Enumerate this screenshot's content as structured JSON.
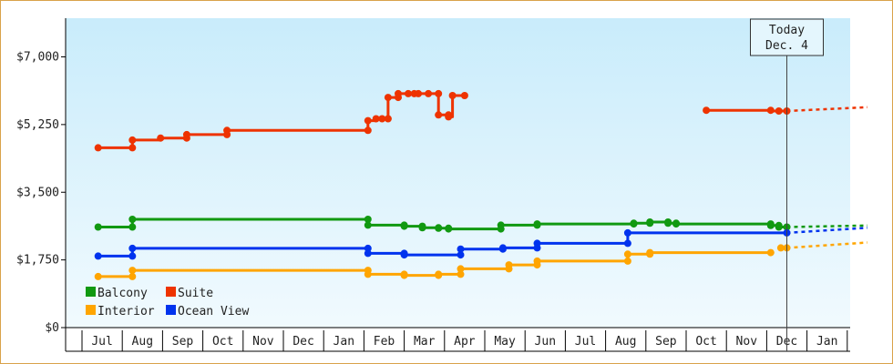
{
  "chart_data": {
    "type": "line",
    "title": "",
    "xlabel": "",
    "ylabel": "",
    "ylim": [
      0,
      8000
    ],
    "y_ticks": [
      {
        "value": 0,
        "label": "$0"
      },
      {
        "value": 1750,
        "label": "$1,750"
      },
      {
        "value": 3500,
        "label": "$3,500"
      },
      {
        "value": 5250,
        "label": "$5,250"
      },
      {
        "value": 7000,
        "label": "$7,000"
      }
    ],
    "x_months": [
      "Jul",
      "Aug",
      "Sep",
      "Oct",
      "Nov",
      "Dec",
      "Jan",
      "Feb",
      "Mar",
      "Apr",
      "May",
      "Jun",
      "Jul",
      "Aug",
      "Sep",
      "Oct",
      "Nov",
      "Dec",
      "Jan"
    ],
    "x_range_months": [
      -0.4,
      19.0
    ],
    "today": {
      "line1": "Today",
      "line2": "Dec. 4",
      "x": 17.0
    },
    "grid": false,
    "legend_position": "bottom-left",
    "series": [
      {
        "name": "Balcony",
        "color": "#119911",
        "points": [
          [
            -0.1,
            2600
          ],
          [
            0.75,
            2600
          ],
          [
            0.75,
            2800
          ],
          [
            6.6,
            2800
          ],
          [
            6.6,
            2650
          ],
          [
            7.5,
            2650
          ],
          [
            7.5,
            2620
          ],
          [
            7.95,
            2620
          ],
          [
            7.95,
            2580
          ],
          [
            8.35,
            2580
          ],
          [
            8.35,
            2570
          ],
          [
            8.6,
            2570
          ],
          [
            8.6,
            2550
          ],
          [
            9.9,
            2550
          ],
          [
            9.9,
            2650
          ],
          [
            10.8,
            2650
          ],
          [
            10.8,
            2680
          ],
          [
            13.2,
            2680
          ],
          [
            13.2,
            2700
          ],
          [
            13.6,
            2700
          ],
          [
            13.6,
            2730
          ],
          [
            14.05,
            2730
          ],
          [
            14.05,
            2700
          ],
          [
            14.25,
            2700
          ],
          [
            14.25,
            2680
          ],
          [
            16.6,
            2680
          ],
          [
            16.6,
            2640
          ],
          [
            16.8,
            2640
          ],
          [
            16.8,
            2600
          ],
          [
            17.0,
            2600
          ]
        ],
        "forecast": [
          [
            17.0,
            2600
          ],
          [
            19.0,
            2640
          ]
        ]
      },
      {
        "name": "Suite",
        "color": "#ee3300",
        "segments": [
          [
            [
              -0.1,
              4650
            ],
            [
              0.75,
              4650
            ],
            [
              0.75,
              4850
            ],
            [
              1.45,
              4850
            ],
            [
              1.45,
              4900
            ],
            [
              2.1,
              4900
            ],
            [
              2.1,
              4990
            ],
            [
              3.1,
              4990
            ],
            [
              3.1,
              5100
            ],
            [
              6.6,
              5100
            ],
            [
              6.6,
              5350
            ],
            [
              6.8,
              5350
            ],
            [
              6.8,
              5400
            ],
            [
              7.1,
              5400
            ],
            [
              7.1,
              5950
            ],
            [
              7.35,
              5950
            ],
            [
              7.35,
              6050
            ],
            [
              8.35,
              6050
            ],
            [
              8.35,
              5500
            ],
            [
              8.6,
              5500
            ],
            [
              8.6,
              5450
            ],
            [
              8.7,
              5450
            ],
            [
              8.7,
              6000
            ],
            [
              9.0,
              6000
            ]
          ],
          [
            [
              15.0,
              5620
            ],
            [
              16.6,
              5620
            ],
            [
              16.6,
              5600
            ],
            [
              17.0,
              5600
            ]
          ]
        ],
        "markers": [
          [
            -0.1,
            4650
          ],
          [
            0.75,
            4650
          ],
          [
            0.75,
            4850
          ],
          [
            1.45,
            4900
          ],
          [
            2.1,
            4900
          ],
          [
            2.1,
            4990
          ],
          [
            3.1,
            4990
          ],
          [
            3.1,
            5100
          ],
          [
            6.6,
            5100
          ],
          [
            6.6,
            5350
          ],
          [
            6.8,
            5400
          ],
          [
            6.95,
            5400
          ],
          [
            7.1,
            5400
          ],
          [
            7.1,
            5950
          ],
          [
            7.35,
            5950
          ],
          [
            7.35,
            6050
          ],
          [
            7.6,
            6050
          ],
          [
            7.75,
            6050
          ],
          [
            7.85,
            6050
          ],
          [
            8.1,
            6050
          ],
          [
            8.35,
            6050
          ],
          [
            8.35,
            5500
          ],
          [
            8.6,
            5500
          ],
          [
            8.6,
            5450
          ],
          [
            8.7,
            6000
          ],
          [
            9.0,
            6000
          ],
          [
            15.0,
            5620
          ],
          [
            16.6,
            5620
          ],
          [
            16.8,
            5600
          ],
          [
            17.0,
            5600
          ]
        ],
        "forecast": [
          [
            17.0,
            5600
          ],
          [
            19.0,
            5700
          ]
        ]
      },
      {
        "name": "Interior",
        "color": "#ffa500",
        "segments": [
          [
            [
              -0.1,
              1320
            ],
            [
              0.75,
              1320
            ],
            [
              0.75,
              1480
            ],
            [
              6.6,
              1480
            ],
            [
              6.6,
              1380
            ],
            [
              7.5,
              1380
            ],
            [
              7.5,
              1350
            ],
            [
              8.35,
              1350
            ],
            [
              8.35,
              1380
            ],
            [
              8.9,
              1380
            ],
            [
              8.9,
              1520
            ],
            [
              10.1,
              1520
            ],
            [
              10.1,
              1620
            ],
            [
              10.8,
              1620
            ],
            [
              10.8,
              1720
            ],
            [
              13.05,
              1720
            ],
            [
              13.05,
              1900
            ],
            [
              13.6,
              1900
            ],
            [
              13.6,
              1940
            ],
            [
              16.6,
              1940
            ]
          ],
          [
            [
              16.85,
              2060
            ],
            [
              17.0,
              2060
            ]
          ]
        ],
        "forecast": [
          [
            17.0,
            2060
          ],
          [
            19.0,
            2200
          ]
        ]
      },
      {
        "name": "Ocean View",
        "color": "#0033ee",
        "points": [
          [
            -0.1,
            1850
          ],
          [
            0.75,
            1850
          ],
          [
            0.75,
            2050
          ],
          [
            6.6,
            2050
          ],
          [
            6.6,
            1920
          ],
          [
            7.5,
            1920
          ],
          [
            7.5,
            1880
          ],
          [
            8.9,
            1880
          ],
          [
            8.9,
            2030
          ],
          [
            9.95,
            2030
          ],
          [
            9.95,
            2060
          ],
          [
            10.8,
            2060
          ],
          [
            10.8,
            2180
          ],
          [
            13.05,
            2180
          ],
          [
            13.05,
            2450
          ],
          [
            17.0,
            2450
          ]
        ],
        "forecast": [
          [
            17.0,
            2450
          ],
          [
            19.0,
            2580
          ]
        ]
      }
    ],
    "legend": [
      {
        "label": "Balcony",
        "color": "#119911"
      },
      {
        "label": "Suite",
        "color": "#ee3300"
      },
      {
        "label": "Interior",
        "color": "#ffa500"
      },
      {
        "label": "Ocean View",
        "color": "#0033ee"
      }
    ]
  }
}
